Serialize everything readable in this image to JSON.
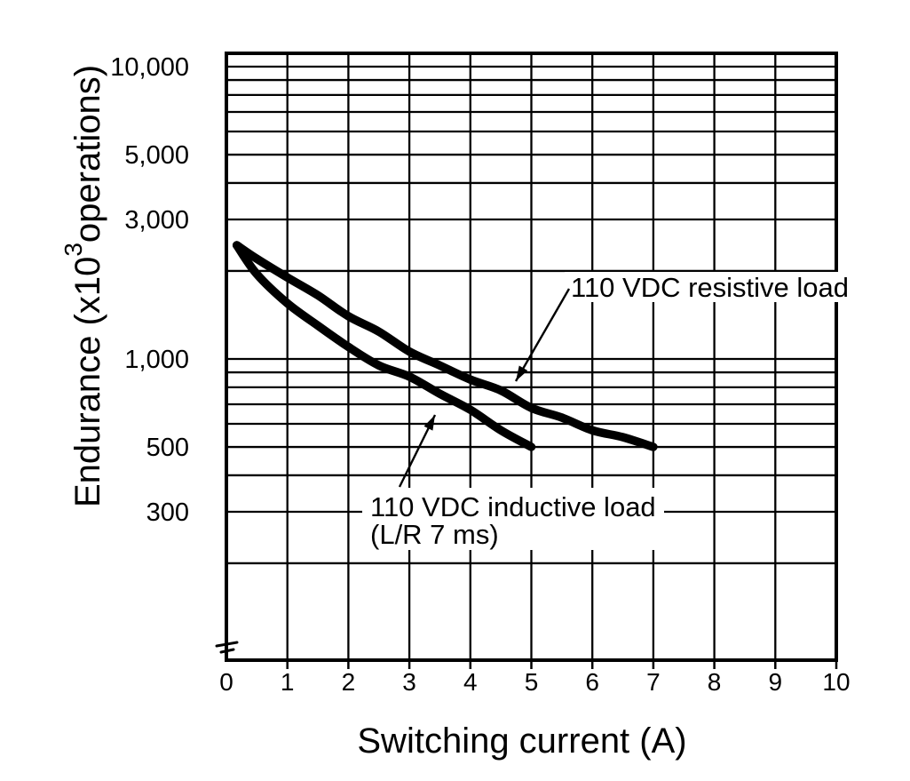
{
  "chart_data": {
    "type": "line",
    "title": "",
    "xlabel": "Switching current (A)",
    "ylabel": {
      "prefix": "Endurance (x10",
      "sup": "3",
      "suffix": "operations)"
    },
    "x_axis": {
      "min": 0,
      "max": 10,
      "tick_values": [
        0,
        1,
        2,
        3,
        4,
        5,
        6,
        7,
        8,
        9,
        10
      ],
      "tick_labels": [
        "0",
        "1",
        "2",
        "3",
        "4",
        "5",
        "6",
        "7",
        "8",
        "9",
        "10"
      ]
    },
    "y_axis": {
      "scale": "log",
      "unit": "x1000 operations",
      "min": 95,
      "max": 11000,
      "grid_values": [
        200,
        300,
        400,
        500,
        600,
        700,
        800,
        900,
        1000,
        2000,
        3000,
        4000,
        5000,
        6000,
        7000,
        8000,
        9000,
        10000
      ],
      "tick_labels": [
        {
          "value": 10000,
          "label": "10,000"
        },
        {
          "value": 5000,
          "label": "5,000"
        },
        {
          "value": 3000,
          "label": "3,000"
        },
        {
          "value": 1000,
          "label": "1,000"
        },
        {
          "value": 500,
          "label": "500"
        },
        {
          "value": 300,
          "label": "300"
        }
      ],
      "axis_break_at_bottom": true
    },
    "grid": true,
    "legend_position": "inline-annotations",
    "series": [
      {
        "name": "110 VDC resistive load",
        "x": [
          0.17,
          0.5,
          1,
          1.5,
          2,
          2.5,
          3,
          3.5,
          4,
          4.5,
          5,
          5.5,
          6,
          6.5,
          7
        ],
        "y": [
          2450,
          2200,
          1900,
          1650,
          1400,
          1240,
          1060,
          950,
          850,
          780,
          680,
          630,
          570,
          540,
          500
        ]
      },
      {
        "name": "110 VDC inductive load (L/R 7 ms)",
        "x": [
          0.17,
          0.5,
          1,
          1.5,
          2,
          2.5,
          3,
          3.5,
          4,
          4.5,
          5
        ],
        "y": [
          2450,
          1950,
          1550,
          1300,
          1100,
          950,
          870,
          760,
          670,
          570,
          500
        ]
      }
    ],
    "annotations": [
      {
        "lines": [
          "110 VDC resistive load"
        ],
        "points_to": "resistive-curve"
      },
      {
        "lines": [
          "110 VDC inductive load",
          "(L/R 7 ms)"
        ],
        "points_to": "inductive-curve"
      }
    ],
    "colors": {
      "ink": "#000000",
      "paper": "#ffffff"
    }
  }
}
